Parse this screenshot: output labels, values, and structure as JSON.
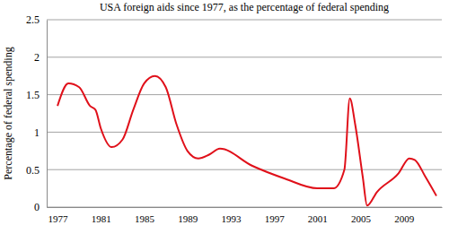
{
  "chart_data": {
    "type": "line",
    "title": "USA foreign aids since 1977, as the percentage of federal spending",
    "y_label": "Percentage of federal spending",
    "x": [
      1977,
      1978,
      1979,
      1980,
      1980.5,
      1981,
      1982,
      1983,
      1984,
      1985,
      1986,
      1987,
      1988,
      1989,
      1990,
      1991,
      1992,
      1995,
      1998,
      2001,
      2002.5,
      2003.5,
      2004,
      2004.5,
      2005.2,
      2005.6,
      2006.5,
      2008.5,
      2009.5,
      2010,
      2011,
      2012
    ],
    "values": [
      1.35,
      1.65,
      1.6,
      1.35,
      1.3,
      1.05,
      0.8,
      0.9,
      1.3,
      1.65,
      1.75,
      1.6,
      1.1,
      0.75,
      0.65,
      0.7,
      0.78,
      0.55,
      0.38,
      0.25,
      0.25,
      0.5,
      1.45,
      1.1,
      0.4,
      0.02,
      0.2,
      0.45,
      0.65,
      0.63,
      0.4,
      0.15
    ],
    "color": "#e0101a",
    "xlim": [
      1976,
      2012.5
    ],
    "xticks": [
      1977,
      1981,
      1985,
      1989,
      1993,
      1997,
      2001,
      2005,
      2009
    ],
    "ylim": [
      0,
      2.5
    ],
    "yticks": [
      0,
      0.5,
      1,
      1.5,
      2,
      2.5
    ],
    "grid": true
  }
}
